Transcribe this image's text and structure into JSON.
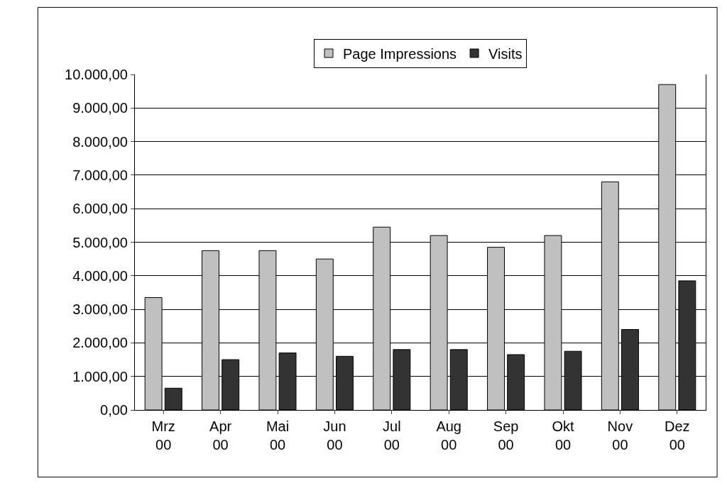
{
  "chart_data": {
    "type": "bar",
    "categories": [
      "Mrz 00",
      "Apr 00",
      "Mai 00",
      "Jun 00",
      "Jul 00",
      "Aug 00",
      "Sep 00",
      "Okt 00",
      "Nov 00",
      "Dez 00"
    ],
    "series": [
      {
        "name": "Page Impressions",
        "color": "#c0c0c0",
        "values": [
          3350,
          4750,
          4750,
          4500,
          5450,
          5200,
          4850,
          5200,
          6800,
          9700
        ]
      },
      {
        "name": "Visits",
        "color": "#333333",
        "values": [
          650,
          1500,
          1700,
          1600,
          1800,
          1800,
          1650,
          1750,
          2400,
          3850
        ]
      }
    ],
    "ylim": [
      0,
      10000
    ],
    "yticks": [
      {
        "value": 0,
        "label": "0,00"
      },
      {
        "value": 1000,
        "label": "1.000,00"
      },
      {
        "value": 2000,
        "label": "2.000,00"
      },
      {
        "value": 3000,
        "label": "3.000,00"
      },
      {
        "value": 4000,
        "label": "4.000,00"
      },
      {
        "value": 5000,
        "label": "5.000,00"
      },
      {
        "value": 6000,
        "label": "6.000,00"
      },
      {
        "value": 7000,
        "label": "7.000,00"
      },
      {
        "value": 8000,
        "label": "8.000,00"
      },
      {
        "value": 9000,
        "label": "9.000,00"
      },
      {
        "value": 10000,
        "label": "10.000,00"
      }
    ],
    "grid": "y",
    "legend": "top"
  }
}
